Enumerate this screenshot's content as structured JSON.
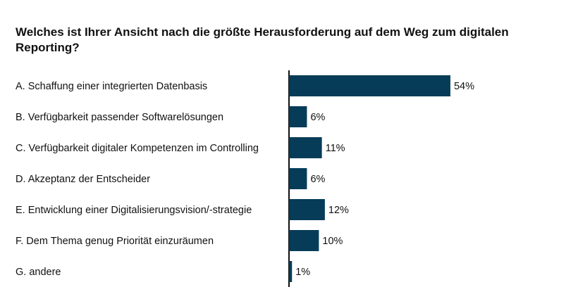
{
  "chart_data": {
    "type": "hbar",
    "title": "Welches ist Ihrer Ansicht nach die größte Herausforderung auf dem Weg zum digitalen Reporting?",
    "categories": [
      "A. Schaffung einer integrierten Datenbasis",
      "B. Verfügbarkeit passender Softwarelösungen",
      "C. Verfügbarkeit digitaler Kompetenzen im Controlling",
      "D. Akzeptanz der Entscheider",
      "E. Entwicklung einer Digitalisierungsvision/-strategie",
      "F. Dem Thema genug Priorität einzuräumen",
      "G. andere"
    ],
    "values": [
      54,
      6,
      11,
      6,
      12,
      10,
      1
    ],
    "value_labels": [
      "54%",
      "6%",
      "11%",
      "6%",
      "12%",
      "10%",
      "1%"
    ],
    "color": "#063c58"
  }
}
